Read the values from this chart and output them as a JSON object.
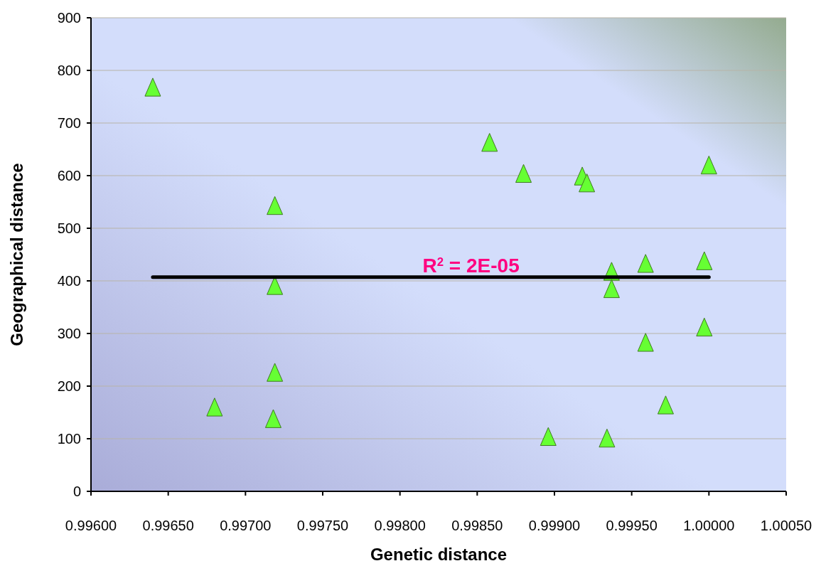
{
  "chart_data": {
    "type": "scatter",
    "xlabel": "Genetic distance",
    "ylabel": "Geographical distance",
    "xlim": [
      0.996,
      1.0005
    ],
    "xticks": [
      {
        "value": 0.996,
        "label": "0.99600"
      },
      {
        "value": 0.9965,
        "label": "0.99650"
      },
      {
        "value": 0.997,
        "label": "0.99700"
      },
      {
        "value": 0.9975,
        "label": "0.99750"
      },
      {
        "value": 0.998,
        "label": "0.99800"
      },
      {
        "value": 0.9985,
        "label": "0.99850"
      },
      {
        "value": 0.999,
        "label": "0.99900"
      },
      {
        "value": 0.9995,
        "label": "0.99950"
      },
      {
        "value": 1.0,
        "label": "1.00000"
      },
      {
        "value": 1.0005,
        "label": "1.00050"
      }
    ],
    "ylim": [
      0,
      900
    ],
    "yticks": [
      0,
      100,
      200,
      300,
      400,
      500,
      600,
      700,
      800,
      900
    ],
    "grid": "y",
    "series": [
      {
        "marker": "triangle",
        "color": "#66ff33",
        "x": [
          0.9964,
          0.99719,
          0.99719,
          0.99719,
          0.9968,
          0.99718,
          0.99858,
          0.9988,
          0.99918,
          0.99921,
          1.0,
          0.99937,
          0.99937,
          0.99959,
          0.99997,
          0.99997,
          0.99959,
          0.99972,
          0.99896,
          0.99934
        ],
        "values": [
          766,
          541,
          389,
          224,
          158,
          136,
          661,
          602,
          597,
          584,
          618,
          416,
          383,
          431,
          436,
          310,
          281,
          162,
          102,
          99
        ]
      },
      {
        "type": "line",
        "marker": "none",
        "color": "#000000",
        "x": [
          0.9964,
          1.0
        ],
        "values": [
          407,
          407
        ]
      }
    ],
    "annotations": [
      {
        "text": "R$^{2}$ = 2E-05",
        "x": 0.99846,
        "y": 416
      }
    ]
  }
}
